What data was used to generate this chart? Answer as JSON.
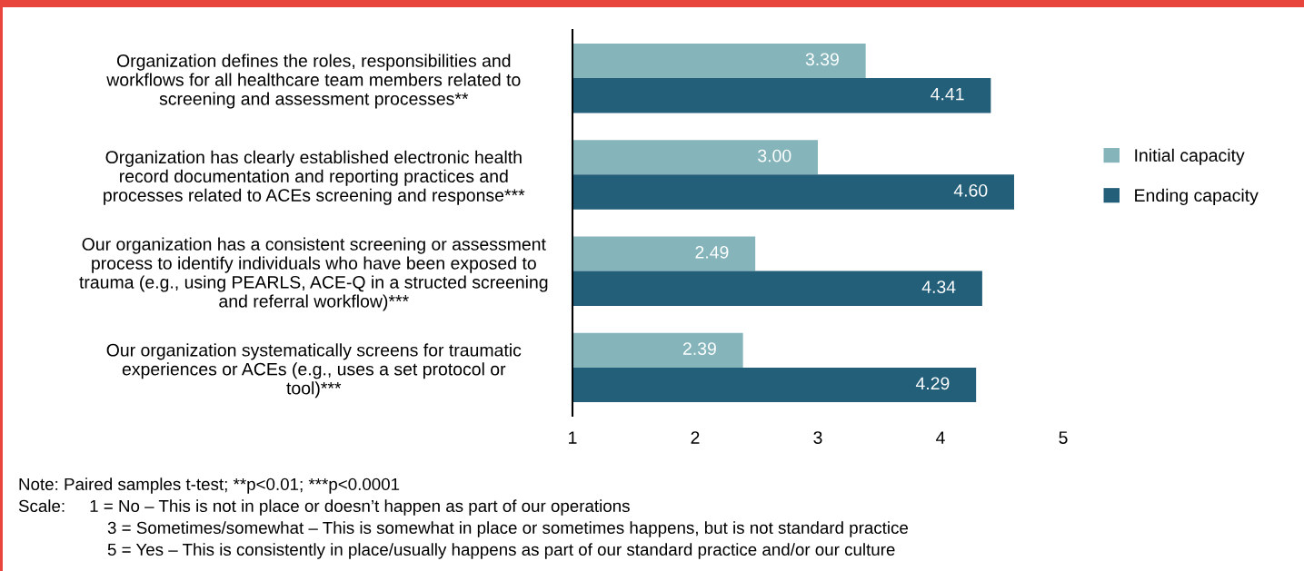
{
  "chart_data": {
    "type": "bar",
    "orientation": "horizontal",
    "categories": [
      "Organization defines the roles, responsibilities and\nworkflows for all healthcare team members related to\nscreening and assessment processes**",
      "Organization has clearly established electronic health\nrecord documentation and reporting practices and\nprocesses related to ACEs screening and response***",
      "Our organization has a consistent screening or assessment\nprocess to identify individuals who have been exposed to\ntrauma (e.g., using PEARLS, ACE-Q in a structed screening\nand referral workflow)***",
      "Our organization systematically screens for traumatic\nexperiences or ACEs (e.g., uses a set protocol or\ntool)***"
    ],
    "series": [
      {
        "name": "Initial capacity",
        "color": "#85b5bb",
        "values": [
          3.39,
          3.0,
          2.49,
          2.39
        ],
        "value_labels": [
          "3.39",
          "3.00",
          "2.49",
          "2.39"
        ]
      },
      {
        "name": "Ending capacity",
        "color": "#245f7a",
        "values": [
          4.41,
          4.6,
          4.34,
          4.29
        ],
        "value_labels": [
          "4.41",
          "4.60",
          "4.34",
          "4.29"
        ]
      }
    ],
    "xlim": [
      1,
      5
    ],
    "xticks": [
      1,
      2,
      3,
      4,
      5
    ],
    "legend": "right",
    "grid": false,
    "annotations": [
      "Note: Paired samples t-test; **p<0.01; ***p<0.0001",
      "Scale:     1 = No – This is not in place or doesn’t happen as part of our operations",
      "3 = Sometimes/somewhat – This is somewhat in place or sometimes happens, but is not standard practice",
      "5 = Yes – This is consistently in place/usually happens as part of our standard practice and/or our culture"
    ]
  }
}
